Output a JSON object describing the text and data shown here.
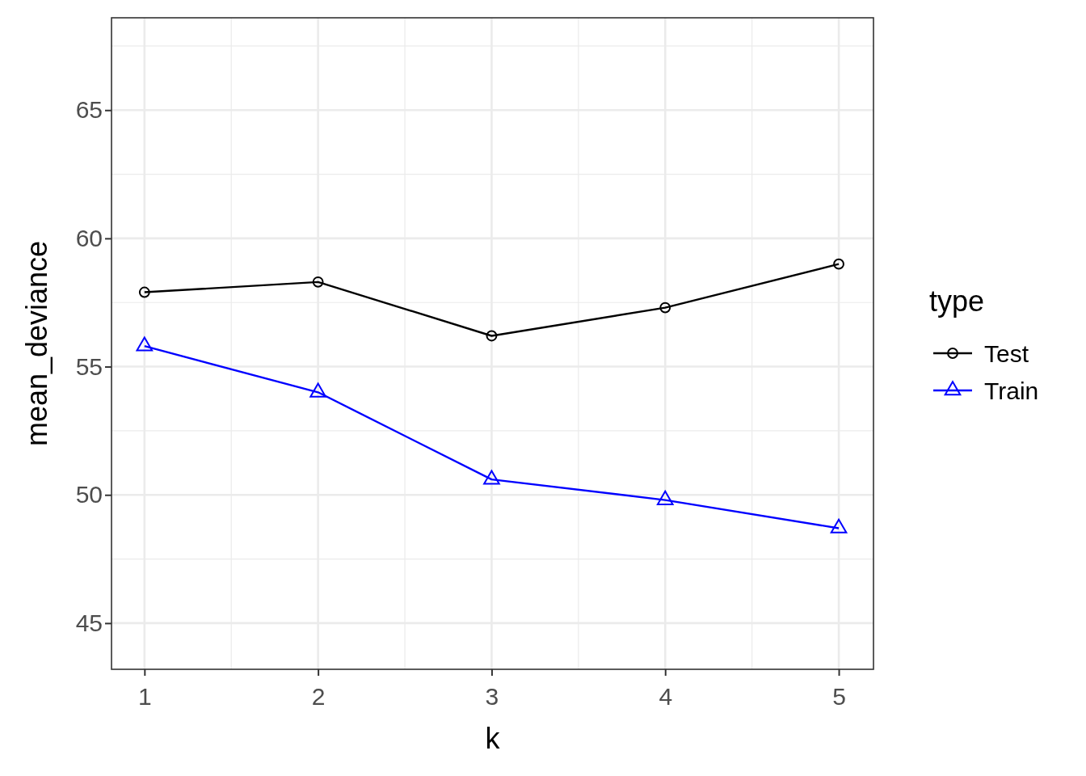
{
  "chart_data": {
    "type": "line",
    "xlabel": "k",
    "ylabel": "mean_deviance",
    "legend_title": "type",
    "x": [
      1,
      2,
      3,
      4,
      5
    ],
    "series": [
      {
        "name": "Test",
        "color": "#000000",
        "marker": "circle",
        "values": [
          57.9,
          58.3,
          56.2,
          57.3,
          59.0
        ]
      },
      {
        "name": "Train",
        "color": "#0000ff",
        "marker": "triangle",
        "values": [
          55.8,
          54.0,
          50.6,
          49.8,
          48.7
        ]
      }
    ],
    "xlim": [
      0.81,
      5.2
    ],
    "ylim": [
      43.2,
      68.6
    ],
    "xticks": [
      1,
      2,
      3,
      4,
      5
    ],
    "yticks": [
      45,
      50,
      55,
      60,
      65
    ],
    "grid": true,
    "legend": "right"
  }
}
